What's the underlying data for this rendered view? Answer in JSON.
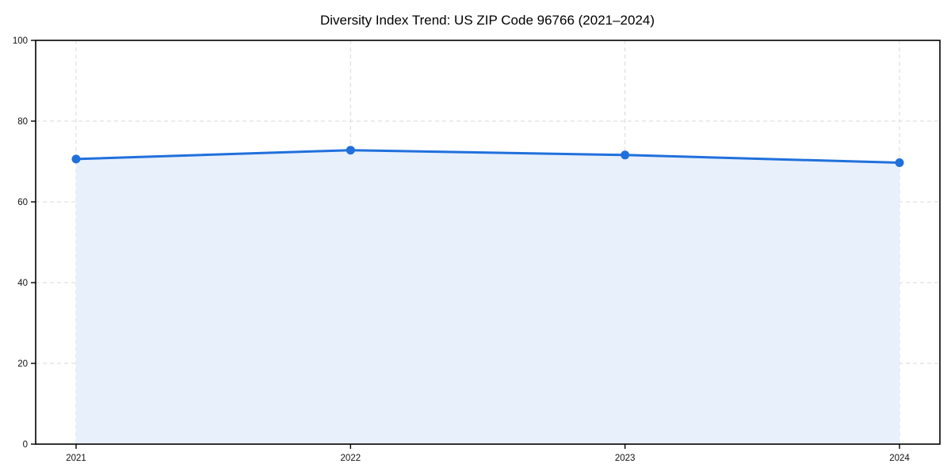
{
  "chart_data": {
    "type": "area",
    "title": "Diversity Index Trend: US ZIP Code 96766 (2021–2024)",
    "categories": [
      "2021",
      "2022",
      "2023",
      "2024"
    ],
    "values": [
      70.6,
      72.8,
      71.6,
      69.7
    ],
    "xlabel": "",
    "ylabel": "",
    "ylim": [
      0,
      100
    ],
    "yticks": [
      0,
      20,
      40,
      60,
      80,
      100
    ],
    "grid": true,
    "grid_style": "dashed",
    "legend": false,
    "marker": "circle",
    "colors": {
      "line": "#2070dc",
      "marker": "#2070dc",
      "fill": "#e8f0fc",
      "grid": "#d9d9d9",
      "axis": "#000000",
      "text": "#000000",
      "background": "#ffffff"
    }
  }
}
